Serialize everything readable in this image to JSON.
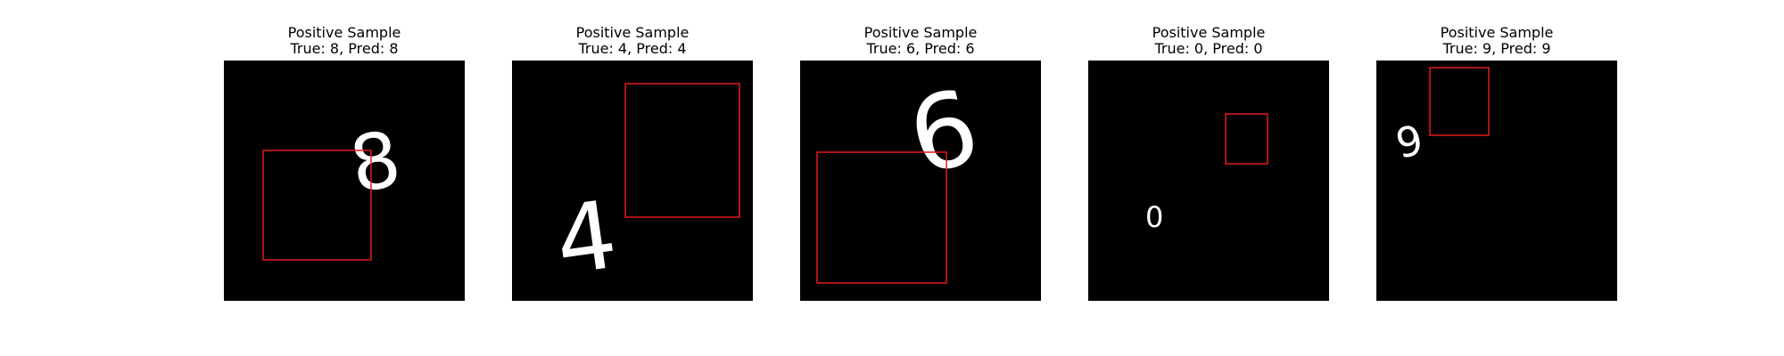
{
  "colors": {
    "background": "#ffffff",
    "image_background": "#000000",
    "digit": "#ffffff",
    "bbox": "#e31a1c"
  },
  "panels": [
    {
      "title": "Positive Sample",
      "subtitle": "True: 8, Pred: 8",
      "digit": "8"
    },
    {
      "title": "Positive Sample",
      "subtitle": "True: 4, Pred: 4",
      "digit": "4"
    },
    {
      "title": "Positive Sample",
      "subtitle": "True: 6, Pred: 6",
      "digit": "6"
    },
    {
      "title": "Positive Sample",
      "subtitle": "True: 0, Pred: 0",
      "digit": "0"
    },
    {
      "title": "Positive Sample",
      "subtitle": "True: 9, Pred: 9",
      "digit": "9"
    }
  ]
}
